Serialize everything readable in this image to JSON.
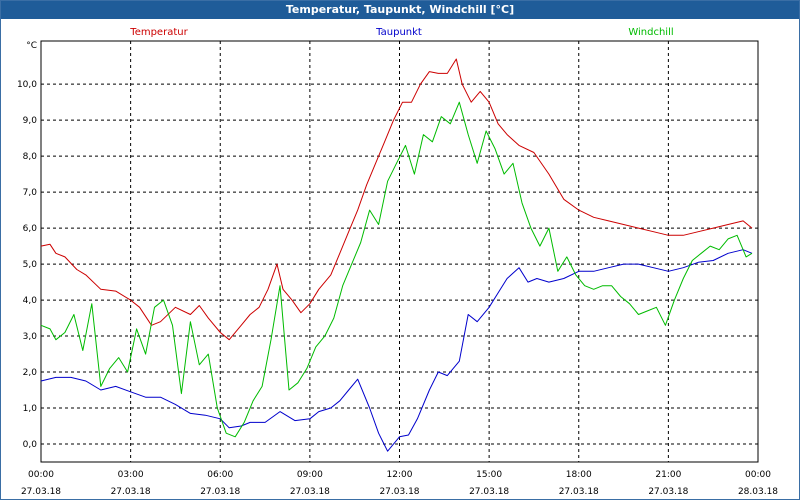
{
  "window": {
    "title": "Temperatur, Taupunkt, Windchill [°C]"
  },
  "chart_data": {
    "type": "line",
    "title": "Temperatur, Taupunkt, Windchill [°C]",
    "ylabel": "°C",
    "xlabel": "",
    "ylim": [
      -0.5,
      11.2
    ],
    "xlim": [
      0,
      24
    ],
    "grid": true,
    "legend_position": "top",
    "y_ticks": [
      "0,0",
      "1,0",
      "2,0",
      "3,0",
      "4,0",
      "5,0",
      "6,0",
      "7,0",
      "8,0",
      "9,0",
      "10,0"
    ],
    "x_ticks": [
      {
        "time": "00:00",
        "date": "27.03.18"
      },
      {
        "time": "03:00",
        "date": "27.03.18"
      },
      {
        "time": "06:00",
        "date": "27.03.18"
      },
      {
        "time": "09:00",
        "date": "27.03.18"
      },
      {
        "time": "12:00",
        "date": "27.03.18"
      },
      {
        "time": "15:00",
        "date": "27.03.18"
      },
      {
        "time": "18:00",
        "date": "27.03.18"
      },
      {
        "time": "21:00",
        "date": "27.03.18"
      },
      {
        "time": "00:00",
        "date": "28.03.18"
      }
    ],
    "series": [
      {
        "name": "Temperatur",
        "color": "#cc0000",
        "x": [
          0,
          0.3,
          0.5,
          0.8,
          1.2,
          1.5,
          2.0,
          2.5,
          3.0,
          3.3,
          3.7,
          4.0,
          4.5,
          5.0,
          5.3,
          5.6,
          6.0,
          6.3,
          6.7,
          7.0,
          7.3,
          7.6,
          7.9,
          8.1,
          8.4,
          8.7,
          9.0,
          9.3,
          9.7,
          10.0,
          10.3,
          10.6,
          10.9,
          11.2,
          11.5,
          11.8,
          12.1,
          12.4,
          12.7,
          13.0,
          13.3,
          13.6,
          13.9,
          14.1,
          14.4,
          14.7,
          15.0,
          15.3,
          15.6,
          16.0,
          16.5,
          17.0,
          17.5,
          18.0,
          18.5,
          19.0,
          19.5,
          20.0,
          20.5,
          21.0,
          21.5,
          22.0,
          22.5,
          23.0,
          23.5,
          23.8
        ],
        "values": [
          5.5,
          5.55,
          5.3,
          5.2,
          4.85,
          4.7,
          4.3,
          4.25,
          4.0,
          3.8,
          3.3,
          3.4,
          3.8,
          3.6,
          3.85,
          3.5,
          3.1,
          2.9,
          3.3,
          3.6,
          3.8,
          4.3,
          5.0,
          4.3,
          4.0,
          3.65,
          3.9,
          4.3,
          4.7,
          5.3,
          5.9,
          6.5,
          7.2,
          7.8,
          8.4,
          9.0,
          9.5,
          9.5,
          10.0,
          10.35,
          10.3,
          10.3,
          10.7,
          10.0,
          9.5,
          9.8,
          9.5,
          8.9,
          8.6,
          8.3,
          8.1,
          7.5,
          6.8,
          6.5,
          6.3,
          6.2,
          6.1,
          6.0,
          5.9,
          5.8,
          5.8,
          5.9,
          6.0,
          6.1,
          6.2,
          6.0
        ]
      },
      {
        "name": "Taupunkt",
        "color": "#0000cc",
        "x": [
          0,
          0.5,
          1.0,
          1.5,
          2.0,
          2.5,
          3.0,
          3.5,
          4.0,
          4.5,
          5.0,
          5.5,
          6.0,
          6.3,
          6.7,
          7.0,
          7.5,
          8.0,
          8.5,
          9.0,
          9.3,
          9.7,
          10.0,
          10.3,
          10.6,
          11.0,
          11.3,
          11.6,
          12.0,
          12.3,
          12.6,
          13.0,
          13.3,
          13.6,
          14.0,
          14.3,
          14.6,
          15.0,
          15.3,
          15.6,
          16.0,
          16.3,
          16.6,
          17.0,
          17.5,
          18.0,
          18.5,
          19.0,
          19.5,
          20.0,
          20.5,
          21.0,
          21.5,
          22.0,
          22.5,
          23.0,
          23.5,
          23.8
        ],
        "values": [
          1.75,
          1.85,
          1.85,
          1.75,
          1.5,
          1.6,
          1.45,
          1.3,
          1.3,
          1.1,
          0.85,
          0.8,
          0.7,
          0.45,
          0.5,
          0.6,
          0.6,
          0.9,
          0.65,
          0.7,
          0.9,
          1.0,
          1.2,
          1.5,
          1.8,
          1.0,
          0.3,
          -0.2,
          0.2,
          0.25,
          0.7,
          1.5,
          2.0,
          1.9,
          2.3,
          3.6,
          3.4,
          3.8,
          4.2,
          4.6,
          4.9,
          4.5,
          4.6,
          4.5,
          4.6,
          4.8,
          4.8,
          4.9,
          5.0,
          5.0,
          4.9,
          4.8,
          4.9,
          5.05,
          5.1,
          5.3,
          5.4,
          5.3
        ]
      },
      {
        "name": "Windchill",
        "color": "#00bb00",
        "x": [
          0,
          0.3,
          0.5,
          0.8,
          1.1,
          1.4,
          1.7,
          2.0,
          2.3,
          2.6,
          2.9,
          3.2,
          3.5,
          3.8,
          4.1,
          4.4,
          4.7,
          5.0,
          5.3,
          5.6,
          5.9,
          6.2,
          6.5,
          6.8,
          7.1,
          7.4,
          7.7,
          8.0,
          8.3,
          8.6,
          8.9,
          9.2,
          9.5,
          9.8,
          10.1,
          10.4,
          10.7,
          11.0,
          11.3,
          11.6,
          11.9,
          12.2,
          12.5,
          12.8,
          13.1,
          13.4,
          13.7,
          14.0,
          14.3,
          14.6,
          14.9,
          15.2,
          15.5,
          15.8,
          16.1,
          16.4,
          16.7,
          17.0,
          17.3,
          17.6,
          17.9,
          18.2,
          18.5,
          18.8,
          19.1,
          19.4,
          19.7,
          20.0,
          20.3,
          20.6,
          20.9,
          21.2,
          21.5,
          21.8,
          22.1,
          22.4,
          22.7,
          23.0,
          23.3,
          23.6,
          23.8
        ],
        "values": [
          3.3,
          3.2,
          2.9,
          3.1,
          3.6,
          2.6,
          3.9,
          1.6,
          2.1,
          2.4,
          2.0,
          3.2,
          2.5,
          3.8,
          4.0,
          3.3,
          1.4,
          3.4,
          2.2,
          2.5,
          1.0,
          0.3,
          0.2,
          0.6,
          1.2,
          1.6,
          2.9,
          4.4,
          1.5,
          1.7,
          2.1,
          2.7,
          3.0,
          3.5,
          4.4,
          5.0,
          5.6,
          6.5,
          6.1,
          7.3,
          7.8,
          8.3,
          7.5,
          8.6,
          8.4,
          9.1,
          8.9,
          9.5,
          8.6,
          7.8,
          8.7,
          8.2,
          7.5,
          7.8,
          6.7,
          6.0,
          5.5,
          6.0,
          4.8,
          5.2,
          4.7,
          4.4,
          4.3,
          4.4,
          4.4,
          4.1,
          3.9,
          3.6,
          3.7,
          3.8,
          3.3,
          4.0,
          4.6,
          5.1,
          5.3,
          5.5,
          5.4,
          5.7,
          5.8,
          5.2,
          5.3
        ]
      }
    ]
  }
}
